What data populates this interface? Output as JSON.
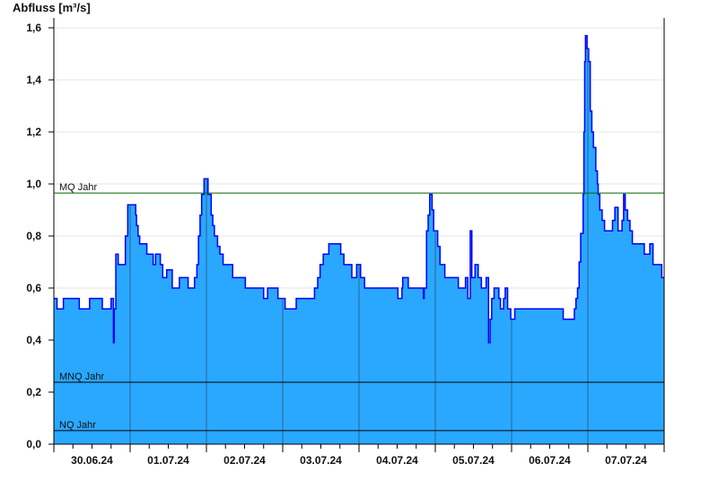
{
  "chart_data": {
    "type": "area",
    "step": true,
    "title": "Abfluss [m³/s]",
    "xlabel": "",
    "ylabel": "Abfluss [m³/s]",
    "xlim": [
      "2024-06-30T00:00",
      "2024-07-07T23:45"
    ],
    "ylim": [
      0,
      1.6
    ],
    "yticks": [
      0,
      0.2,
      0.4,
      0.6,
      0.8,
      1.0,
      1.2,
      1.4,
      1.6
    ],
    "ytick_labels": [
      "0,0",
      "0,2",
      "0,4",
      "0,6",
      "0,8",
      "1,0",
      "1,2",
      "1,4",
      "1,6"
    ],
    "xtick_labels": [
      "30.06.24",
      "01.07.24",
      "02.07.24",
      "03.07.24",
      "04.07.24",
      "05.07.24",
      "06.07.24",
      "07.07.24"
    ],
    "grid": "horizontal",
    "colors": {
      "fill": "#2aa8ff",
      "line": "#0000ff",
      "day_lines": "#2a6390",
      "mq": "#006400",
      "mnq": "#000000",
      "nq": "#000000",
      "grid": "#e6e6e6"
    },
    "reference_lines": [
      {
        "name": "MQ Jahr",
        "value": 0.965
      },
      {
        "name": "MNQ Jahr",
        "value": 0.238
      },
      {
        "name": "NQ Jahr",
        "value": 0.052
      }
    ],
    "points": [
      [
        "2024-06-30T00:00",
        0.56
      ],
      [
        "2024-06-30T01:00",
        0.52
      ],
      [
        "2024-06-30T03:00",
        0.56
      ],
      [
        "2024-06-30T08:00",
        0.52
      ],
      [
        "2024-06-30T11:15",
        0.56
      ],
      [
        "2024-06-30T15:15",
        0.52
      ],
      [
        "2024-06-30T18:00",
        0.56
      ],
      [
        "2024-06-30T18:45",
        0.39
      ],
      [
        "2024-06-30T19:00",
        0.52
      ],
      [
        "2024-06-30T19:30",
        0.73
      ],
      [
        "2024-06-30T20:15",
        0.69
      ],
      [
        "2024-06-30T22:30",
        0.8
      ],
      [
        "2024-06-30T23:15",
        0.92
      ],
      [
        "2024-07-01T01:45",
        0.88
      ],
      [
        "2024-07-01T02:00",
        0.84
      ],
      [
        "2024-07-01T02:30",
        0.8
      ],
      [
        "2024-07-01T03:00",
        0.77
      ],
      [
        "2024-07-01T05:15",
        0.73
      ],
      [
        "2024-07-01T07:15",
        0.69
      ],
      [
        "2024-07-01T08:00",
        0.73
      ],
      [
        "2024-07-01T09:30",
        0.69
      ],
      [
        "2024-07-01T10:15",
        0.64
      ],
      [
        "2024-07-01T11:30",
        0.67
      ],
      [
        "2024-07-01T13:15",
        0.6
      ],
      [
        "2024-07-01T15:30",
        0.64
      ],
      [
        "2024-07-01T18:15",
        0.6
      ],
      [
        "2024-07-01T20:15",
        0.64
      ],
      [
        "2024-07-01T21:00",
        0.69
      ],
      [
        "2024-07-01T21:30",
        0.8
      ],
      [
        "2024-07-01T22:00",
        0.88
      ],
      [
        "2024-07-01T22:30",
        0.96
      ],
      [
        "2024-07-01T23:15",
        1.02
      ],
      [
        "2024-07-02T00:30",
        0.96
      ],
      [
        "2024-07-02T01:30",
        0.88
      ],
      [
        "2024-07-02T02:00",
        0.84
      ],
      [
        "2024-07-02T02:30",
        0.8
      ],
      [
        "2024-07-02T03:30",
        0.76
      ],
      [
        "2024-07-02T04:15",
        0.73
      ],
      [
        "2024-07-02T05:15",
        0.69
      ],
      [
        "2024-07-02T08:15",
        0.64
      ],
      [
        "2024-07-02T12:15",
        0.6
      ],
      [
        "2024-07-02T18:00",
        0.56
      ],
      [
        "2024-07-02T19:15",
        0.6
      ],
      [
        "2024-07-02T22:30",
        0.56
      ],
      [
        "2024-07-03T00:45",
        0.52
      ],
      [
        "2024-07-03T04:15",
        0.56
      ],
      [
        "2024-07-03T10:00",
        0.6
      ],
      [
        "2024-07-03T11:00",
        0.64
      ],
      [
        "2024-07-03T11:45",
        0.69
      ],
      [
        "2024-07-03T12:45",
        0.73
      ],
      [
        "2024-07-03T14:30",
        0.77
      ],
      [
        "2024-07-03T18:15",
        0.73
      ],
      [
        "2024-07-03T19:15",
        0.69
      ],
      [
        "2024-07-03T21:45",
        0.64
      ],
      [
        "2024-07-03T23:15",
        0.69
      ],
      [
        "2024-07-04T00:30",
        0.64
      ],
      [
        "2024-07-04T01:45",
        0.6
      ],
      [
        "2024-07-04T12:15",
        0.56
      ],
      [
        "2024-07-04T13:30",
        0.6
      ],
      [
        "2024-07-04T13:45",
        0.64
      ],
      [
        "2024-07-04T15:30",
        0.6
      ],
      [
        "2024-07-04T20:15",
        0.56
      ],
      [
        "2024-07-04T20:30",
        0.6
      ],
      [
        "2024-07-04T21:15",
        0.82
      ],
      [
        "2024-07-04T21:45",
        0.88
      ],
      [
        "2024-07-04T22:15",
        0.96
      ],
      [
        "2024-07-04T23:00",
        0.9
      ],
      [
        "2024-07-04T23:30",
        0.82
      ],
      [
        "2024-07-05T00:45",
        0.76
      ],
      [
        "2024-07-05T01:30",
        0.69
      ],
      [
        "2024-07-05T03:00",
        0.64
      ],
      [
        "2024-07-05T07:15",
        0.6
      ],
      [
        "2024-07-05T09:30",
        0.64
      ],
      [
        "2024-07-05T10:15",
        0.56
      ],
      [
        "2024-07-05T11:00",
        0.82
      ],
      [
        "2024-07-05T11:30",
        0.64
      ],
      [
        "2024-07-05T12:30",
        0.69
      ],
      [
        "2024-07-05T13:30",
        0.64
      ],
      [
        "2024-07-05T14:30",
        0.6
      ],
      [
        "2024-07-05T16:00",
        0.64
      ],
      [
        "2024-07-05T16:45",
        0.39
      ],
      [
        "2024-07-05T17:15",
        0.48
      ],
      [
        "2024-07-05T17:45",
        0.56
      ],
      [
        "2024-07-05T18:30",
        0.6
      ],
      [
        "2024-07-05T20:00",
        0.56
      ],
      [
        "2024-07-05T20:30",
        0.52
      ],
      [
        "2024-07-05T21:30",
        0.56
      ],
      [
        "2024-07-05T22:00",
        0.6
      ],
      [
        "2024-07-05T22:45",
        0.52
      ],
      [
        "2024-07-05T23:45",
        0.48
      ],
      [
        "2024-07-06T01:00",
        0.52
      ],
      [
        "2024-07-06T16:15",
        0.48
      ],
      [
        "2024-07-06T19:45",
        0.52
      ],
      [
        "2024-07-06T20:15",
        0.56
      ],
      [
        "2024-07-06T20:45",
        0.6
      ],
      [
        "2024-07-06T21:15",
        0.7
      ],
      [
        "2024-07-06T21:45",
        0.81
      ],
      [
        "2024-07-06T22:30",
        0.96
      ],
      [
        "2024-07-06T22:45",
        1.2
      ],
      [
        "2024-07-06T23:00",
        1.47
      ],
      [
        "2024-07-06T23:15",
        1.57
      ],
      [
        "2024-07-06T23:45",
        1.52
      ],
      [
        "2024-07-07T00:15",
        1.47
      ],
      [
        "2024-07-07T00:45",
        1.28
      ],
      [
        "2024-07-07T01:15",
        1.2
      ],
      [
        "2024-07-07T01:45",
        1.14
      ],
      [
        "2024-07-07T02:30",
        1.05
      ],
      [
        "2024-07-07T03:00",
        1.0
      ],
      [
        "2024-07-07T03:15",
        0.96
      ],
      [
        "2024-07-07T03:45",
        0.9
      ],
      [
        "2024-07-07T04:30",
        0.86
      ],
      [
        "2024-07-07T05:15",
        0.82
      ],
      [
        "2024-07-07T07:45",
        0.86
      ],
      [
        "2024-07-07T08:30",
        0.91
      ],
      [
        "2024-07-07T09:30",
        0.82
      ],
      [
        "2024-07-07T10:45",
        0.86
      ],
      [
        "2024-07-07T11:15",
        0.96
      ],
      [
        "2024-07-07T11:45",
        0.9
      ],
      [
        "2024-07-07T12:30",
        0.86
      ],
      [
        "2024-07-07T13:15",
        0.82
      ],
      [
        "2024-07-07T14:00",
        0.77
      ],
      [
        "2024-07-07T17:45",
        0.73
      ],
      [
        "2024-07-07T19:30",
        0.77
      ],
      [
        "2024-07-07T20:30",
        0.69
      ],
      [
        "2024-07-07T23:15",
        0.64
      ]
    ]
  }
}
